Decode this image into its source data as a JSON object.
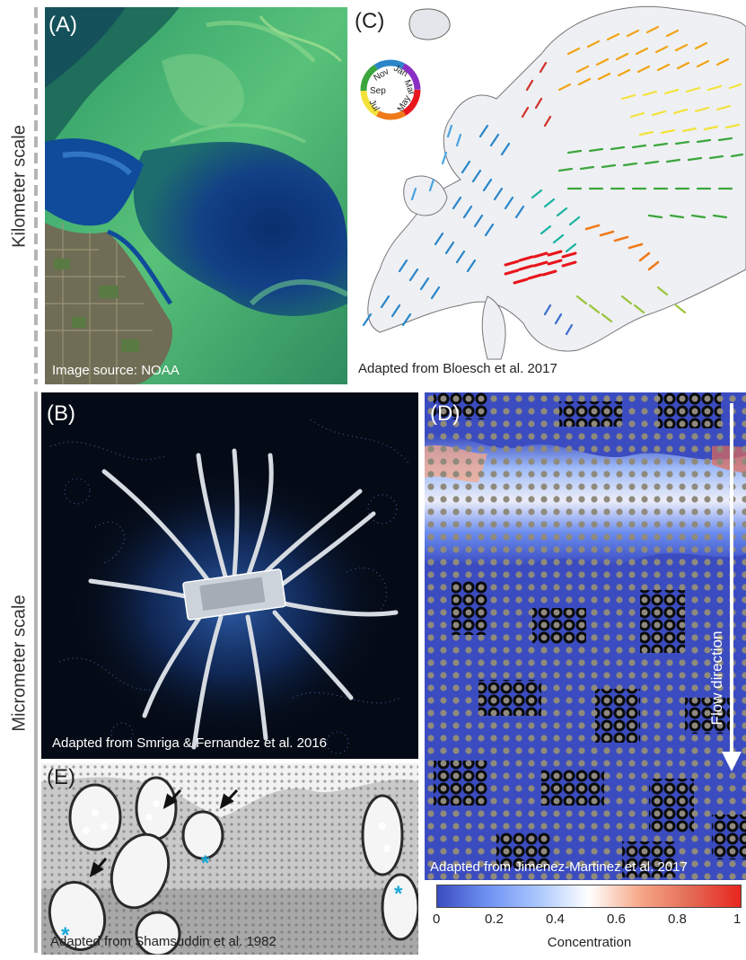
{
  "scales": {
    "kilometer": "Kilometer scale",
    "micrometer": "Micrometer scale"
  },
  "panels": {
    "a": {
      "letter": "(A)",
      "caption": "Image source: NOAA"
    },
    "c": {
      "letter": "(C)",
      "caption": "Adapted from Bloesch et al. 2017",
      "months": [
        "Nov",
        "Jan",
        "Mar",
        "May",
        "Jul",
        "Sep"
      ]
    },
    "b": {
      "letter": "(B)",
      "caption": "Adapted from Smriga & Fernandez et al. 2016"
    },
    "d": {
      "letter": "(D)",
      "caption": "Adapted from Jimenez-Martinez et al. 2017",
      "flow_label": "Flow direction"
    },
    "e": {
      "letter": "(E)",
      "caption": "Adapted from Shamsuddin et al. 1982",
      "marker": "*"
    }
  },
  "colorbar": {
    "title": "Concentration",
    "ticks": [
      "0",
      "0.2",
      "0.4",
      "0.6",
      "0.8",
      "1"
    ],
    "colors": [
      "#3b4cc0",
      "#6f92f3",
      "#aac7fd",
      "#ffffff",
      "#f7a889",
      "#e36b55",
      "#e8251f"
    ]
  }
}
